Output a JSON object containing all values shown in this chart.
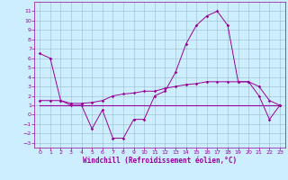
{
  "xlabel": "Windchill (Refroidissement éolien,°C)",
  "x": [
    0,
    1,
    2,
    3,
    4,
    5,
    6,
    7,
    8,
    9,
    10,
    11,
    12,
    13,
    14,
    15,
    16,
    17,
    18,
    19,
    20,
    21,
    22,
    23
  ],
  "y_jagged": [
    6.5,
    6.0,
    1.5,
    1.0,
    1.0,
    -1.5,
    0.5,
    -2.5,
    -2.5,
    -0.5,
    -0.5,
    2.0,
    2.5,
    4.5,
    7.5,
    9.5,
    10.5,
    11.0,
    9.5,
    3.5,
    3.5,
    2.0,
    -0.5,
    1.0
  ],
  "y_trend": [
    1.5,
    1.5,
    1.5,
    1.2,
    1.2,
    1.3,
    1.5,
    2.0,
    2.2,
    2.3,
    2.5,
    2.5,
    2.8,
    3.0,
    3.2,
    3.3,
    3.5,
    3.5,
    3.5,
    3.5,
    3.5,
    3.0,
    1.5,
    1.0
  ],
  "y_flat": [
    1.0,
    1.0,
    1.0,
    1.0,
    1.0,
    1.0,
    1.0,
    1.0,
    1.0,
    1.0,
    1.0,
    1.0,
    1.0,
    1.0,
    1.0,
    1.0,
    1.0,
    1.0,
    1.0,
    1.0,
    1.0,
    1.0,
    1.0,
    1.0
  ],
  "ylim": [
    -3.5,
    12.0
  ],
  "yticks": [
    -3,
    -2,
    -1,
    0,
    1,
    2,
    3,
    4,
    5,
    6,
    7,
    8,
    9,
    10,
    11
  ],
  "xticks": [
    0,
    1,
    2,
    3,
    4,
    5,
    6,
    7,
    8,
    9,
    10,
    11,
    12,
    13,
    14,
    15,
    16,
    17,
    18,
    19,
    20,
    21,
    22,
    23
  ],
  "bg_color": "#cceeff",
  "line_color": "#990099",
  "grid_color": "#99bbcc",
  "xlabel_fontsize": 5.5,
  "tick_fontsize": 4.5
}
